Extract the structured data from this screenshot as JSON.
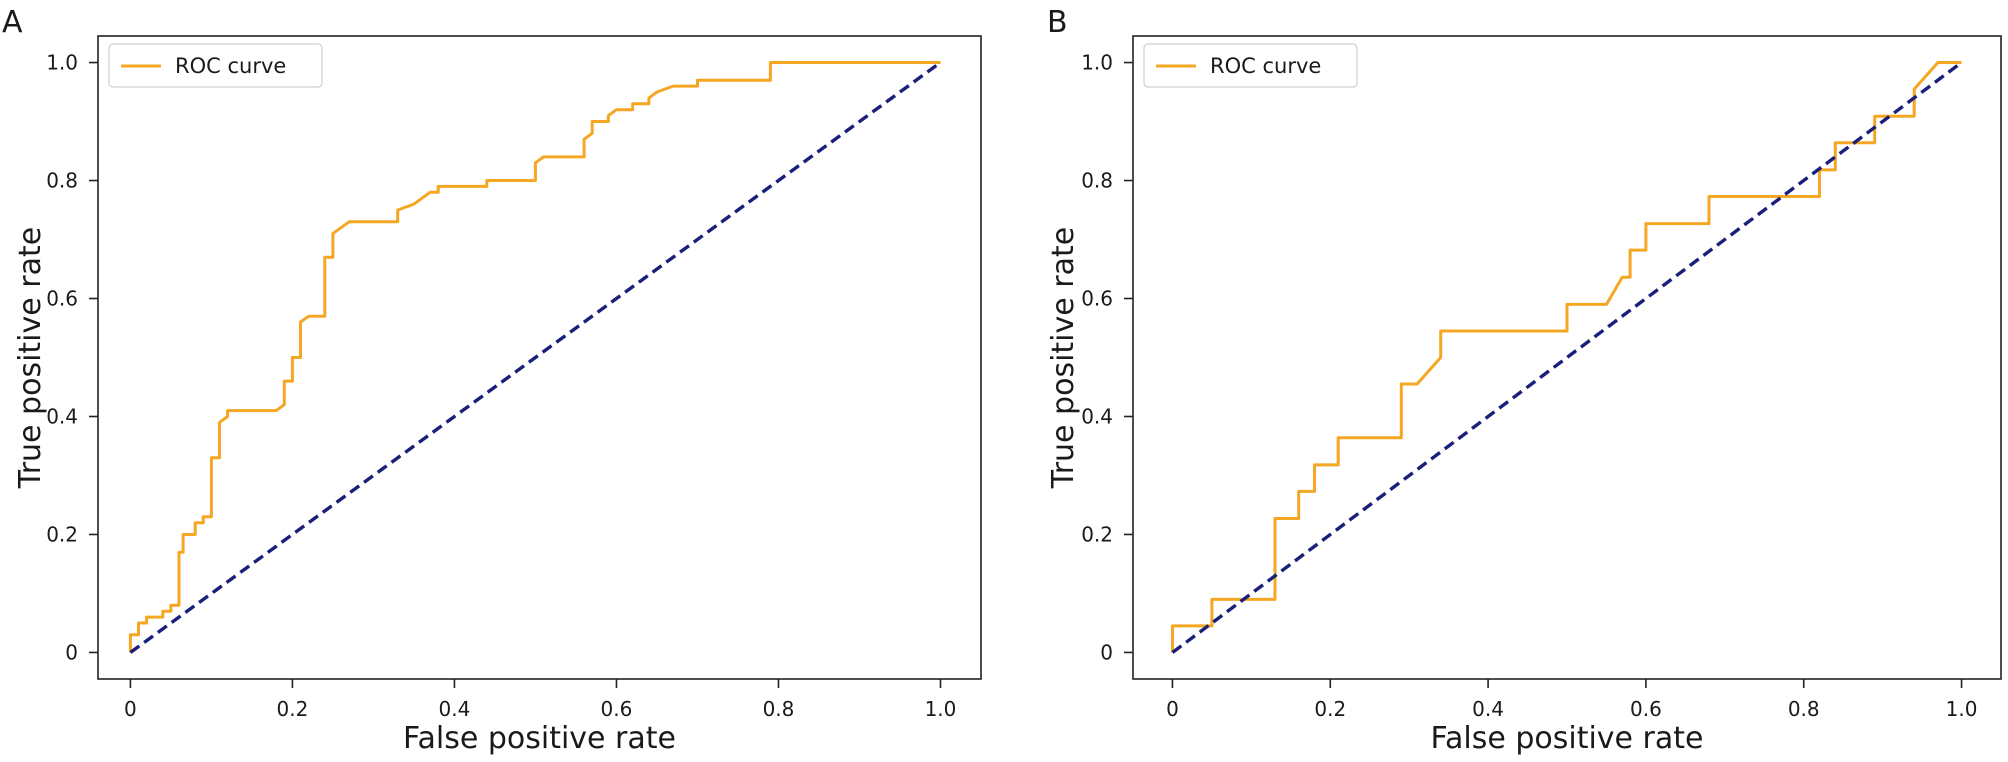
{
  "chart_data": [
    {
      "type": "line",
      "panel_label": "A",
      "xlabel": "False positive rate",
      "ylabel": "True positive rate",
      "xlim": [
        -0.04,
        1.05
      ],
      "ylim": [
        -0.045,
        1.045
      ],
      "xticks": [
        0,
        0.2,
        0.4,
        0.6,
        0.8,
        1.0
      ],
      "xtick_labels": [
        "0",
        "0.2",
        "0.4",
        "0.6",
        "0.8",
        "1.0"
      ],
      "yticks": [
        0,
        0.2,
        0.4,
        0.6,
        0.8,
        1.0
      ],
      "ytick_labels": [
        "0",
        "0.2",
        "0.4",
        "0.6",
        "0.8",
        "1.0"
      ],
      "grid": false,
      "legend_position": "top-left",
      "colors": {
        "roc": "#F5A623",
        "diagonal": "#1A1F7A"
      },
      "series": [
        {
          "name": "ROC curve",
          "style": "solid",
          "x": [
            0,
            0,
            0.01,
            0.01,
            0.02,
            0.02,
            0.04,
            0.04,
            0.05,
            0.05,
            0.06,
            0.06,
            0.065,
            0.065,
            0.08,
            0.08,
            0.09,
            0.09,
            0.1,
            0.1,
            0.11,
            0.11,
            0.12,
            0.12,
            0.13,
            0.18,
            0.19,
            0.19,
            0.2,
            0.2,
            0.21,
            0.21,
            0.22,
            0.22,
            0.24,
            0.24,
            0.25,
            0.25,
            0.26,
            0.26,
            0.27,
            0.33,
            0.33,
            0.35,
            0.36,
            0.37,
            0.38,
            0.38,
            0.44,
            0.44,
            0.5,
            0.5,
            0.51,
            0.52,
            0.56,
            0.56,
            0.57,
            0.57,
            0.59,
            0.59,
            0.6,
            0.62,
            0.62,
            0.64,
            0.64,
            0.65,
            0.67,
            0.68,
            0.7,
            0.7,
            0.79,
            0.79,
            1.0
          ],
          "y": [
            0,
            0.03,
            0.03,
            0.05,
            0.05,
            0.06,
            0.06,
            0.07,
            0.07,
            0.08,
            0.08,
            0.17,
            0.17,
            0.2,
            0.2,
            0.22,
            0.22,
            0.23,
            0.23,
            0.33,
            0.33,
            0.39,
            0.4,
            0.41,
            0.41,
            0.41,
            0.42,
            0.46,
            0.46,
            0.5,
            0.5,
            0.56,
            0.57,
            0.57,
            0.57,
            0.67,
            0.67,
            0.71,
            0.72,
            0.72,
            0.73,
            0.73,
            0.75,
            0.76,
            0.77,
            0.78,
            0.78,
            0.79,
            0.79,
            0.8,
            0.8,
            0.83,
            0.84,
            0.84,
            0.84,
            0.87,
            0.88,
            0.9,
            0.9,
            0.91,
            0.92,
            0.92,
            0.93,
            0.93,
            0.94,
            0.95,
            0.96,
            0.96,
            0.96,
            0.97,
            0.97,
            1.0,
            1.0
          ]
        },
        {
          "name": "",
          "style": "dashed",
          "x": [
            0,
            1
          ],
          "y": [
            0,
            1
          ]
        }
      ],
      "legend": [
        "ROC curve"
      ]
    },
    {
      "type": "line",
      "panel_label": "B",
      "xlabel": "False positive rate",
      "ylabel": "True positive rate",
      "xlim": [
        -0.05,
        1.05
      ],
      "ylim": [
        -0.045,
        1.045
      ],
      "xticks": [
        0,
        0.2,
        0.4,
        0.6,
        0.8,
        1.0
      ],
      "xtick_labels": [
        "0",
        "0.2",
        "0.4",
        "0.6",
        "0.8",
        "1.0"
      ],
      "yticks": [
        0,
        0.2,
        0.4,
        0.6,
        0.8,
        1.0
      ],
      "ytick_labels": [
        "0",
        "0.2",
        "0.4",
        "0.6",
        "0.8",
        "1.0"
      ],
      "grid": false,
      "legend_position": "top-left",
      "colors": {
        "roc": "#F5A623",
        "diagonal": "#1A1F7A"
      },
      "series": [
        {
          "name": "ROC curve",
          "style": "solid",
          "x": [
            0,
            0,
            0.05,
            0.05,
            0.13,
            0.13,
            0.16,
            0.16,
            0.18,
            0.18,
            0.21,
            0.21,
            0.29,
            0.29,
            0.31,
            0.34,
            0.34,
            0.5,
            0.5,
            0.55,
            0.57,
            0.58,
            0.58,
            0.6,
            0.6,
            0.68,
            0.68,
            0.82,
            0.82,
            0.84,
            0.84,
            0.89,
            0.89,
            0.94,
            0.94,
            0.97,
            1.0
          ],
          "y": [
            0,
            0.045,
            0.045,
            0.09,
            0.09,
            0.227,
            0.227,
            0.273,
            0.273,
            0.318,
            0.318,
            0.364,
            0.364,
            0.455,
            0.455,
            0.5,
            0.545,
            0.545,
            0.59,
            0.59,
            0.636,
            0.636,
            0.682,
            0.682,
            0.727,
            0.727,
            0.773,
            0.773,
            0.818,
            0.818,
            0.864,
            0.864,
            0.909,
            0.909,
            0.955,
            1.0,
            1.0
          ]
        },
        {
          "name": "",
          "style": "dashed",
          "x": [
            0,
            1
          ],
          "y": [
            0,
            1
          ]
        }
      ],
      "legend": [
        "ROC curve"
      ]
    }
  ]
}
